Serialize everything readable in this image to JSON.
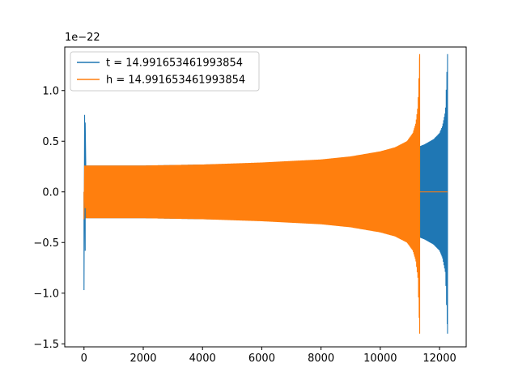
{
  "chart_data": {
    "type": "line",
    "title": "",
    "xlabel": "",
    "ylabel": "",
    "y_scale_label": "1e−22",
    "xlim": [
      -650,
      12900
    ],
    "ylim": [
      -1.53,
      1.43
    ],
    "x_ticks": [
      0,
      2000,
      4000,
      6000,
      8000,
      10000,
      12000
    ],
    "x_tick_labels": [
      "0",
      "2000",
      "4000",
      "6000",
      "8000",
      "10000",
      "12000"
    ],
    "y_ticks": [
      -1.5,
      -1.0,
      -0.5,
      0.0,
      0.5,
      1.0
    ],
    "y_tick_labels": [
      "−1.5",
      "−1.0",
      "−0.5",
      "0.0",
      "0.5",
      "1.0"
    ],
    "grid": false,
    "legend_position": "top-left",
    "series": [
      {
        "name": "t = 14.991653461993854",
        "color": "#1f77b4",
        "spike_start": {
          "x": [
            0,
            40
          ],
          "y": [
            -0.97,
            0.76
          ]
        },
        "envelope": {
          "x": [
            60,
            2000,
            4000,
            6000,
            8000,
            9500,
            10500,
            11000,
            11330,
            11500,
            11800,
            12000,
            12100,
            12200,
            12270
          ],
          "upper": [
            0.26,
            0.26,
            0.27,
            0.28,
            0.3,
            0.33,
            0.37,
            0.4,
            0.45,
            0.47,
            0.52,
            0.58,
            0.65,
            0.8,
            1.36
          ],
          "lower": [
            -0.26,
            -0.26,
            -0.27,
            -0.28,
            -0.3,
            -0.33,
            -0.37,
            -0.4,
            -0.45,
            -0.47,
            -0.52,
            -0.58,
            -0.65,
            -0.8,
            -1.4
          ]
        }
      },
      {
        "name": "h = 14.991653461993854",
        "color": "#ff7f0e",
        "spike_start": {
          "x": [
            0,
            40
          ],
          "y": [
            -0.27,
            0.26
          ]
        },
        "envelope": {
          "x": [
            60,
            2000,
            4000,
            6000,
            8000,
            9000,
            10000,
            10500,
            10900,
            11100,
            11200,
            11270,
            11330
          ],
          "upper": [
            0.26,
            0.26,
            0.27,
            0.29,
            0.32,
            0.35,
            0.4,
            0.44,
            0.5,
            0.58,
            0.68,
            0.85,
            1.36
          ],
          "lower": [
            -0.26,
            -0.26,
            -0.27,
            -0.29,
            -0.32,
            -0.35,
            -0.4,
            -0.44,
            -0.5,
            -0.58,
            -0.68,
            -0.85,
            -1.4
          ]
        },
        "flat_after": {
          "x": [
            11330,
            12270
          ],
          "y": 0.0
        }
      }
    ]
  }
}
